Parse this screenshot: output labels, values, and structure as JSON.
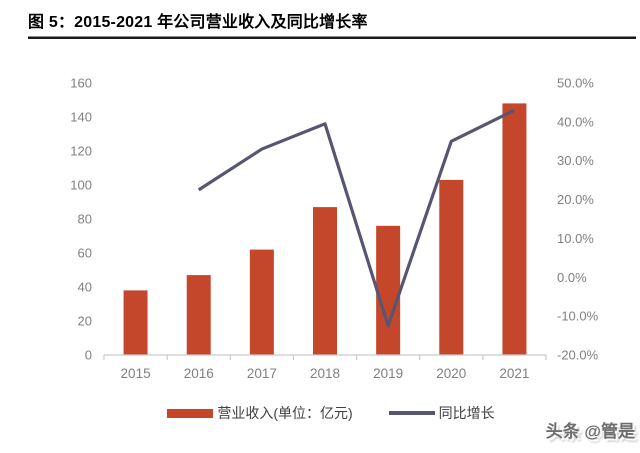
{
  "title": "图 5：2015-2021 年公司营业收入及同比增长率",
  "watermark": "头条 @管是",
  "legend": {
    "revenue_label": "营业收入(单位：亿元)",
    "growth_label": "同比增长"
  },
  "colors": {
    "bar": "#C5472B",
    "line": "#575672",
    "axis_text": "#808080",
    "axis_line": "#C9C9C9",
    "title_rule": "#1A1A1A",
    "legend_text": "#404040"
  },
  "chart_data": {
    "type": "bar+line combo",
    "categories": [
      "2015",
      "2016",
      "2017",
      "2018",
      "2019",
      "2020",
      "2021"
    ],
    "series": [
      {
        "name": "营业收入(单位：亿元)",
        "type": "bar",
        "axis": "left",
        "values": [
          38,
          47,
          62,
          87,
          76,
          103,
          148
        ]
      },
      {
        "name": "同比增长",
        "type": "line",
        "axis": "right",
        "values": [
          null,
          22.5,
          33.0,
          39.5,
          -12.5,
          35.0,
          43.0
        ]
      }
    ],
    "left_axis": {
      "min": 0,
      "max": 160,
      "step": 20,
      "tick_labels": [
        "0",
        "20",
        "40",
        "60",
        "80",
        "100",
        "120",
        "140",
        "160"
      ]
    },
    "right_axis": {
      "min": -20,
      "max": 50,
      "step": 10,
      "tick_labels": [
        "-20.0%",
        "-10.0%",
        "0.0%",
        "10.0%",
        "20.0%",
        "30.0%",
        "40.0%",
        "50.0%"
      ]
    },
    "grid": false,
    "legend_position": "bottom"
  }
}
